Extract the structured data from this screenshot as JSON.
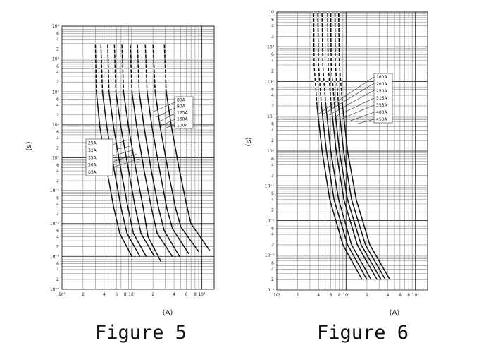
{
  "chart_data": [
    {
      "type": "line",
      "title": "",
      "caption": "Figure 5",
      "xlabel": "(A)",
      "ylabel": "(s)",
      "x_scale": "log",
      "y_scale": "log",
      "xlim": [
        10,
        1500
      ],
      "ylim": [
        0.0001,
        10000
      ],
      "x_ticks": [
        "10¹",
        "2",
        "4",
        "6",
        "8",
        "10²",
        "2",
        "4",
        "6",
        "8",
        "10³"
      ],
      "y_ticks": [
        "10⁻⁴",
        "2",
        "4",
        "6",
        "10⁻³",
        "2",
        "4",
        "6",
        "10⁻²",
        "2",
        "4",
        "6",
        "10⁻¹",
        "2",
        "4",
        "6",
        "10⁰",
        "2",
        "4",
        "6",
        "10¹",
        "2",
        "4",
        "6",
        "10²",
        "2",
        "4",
        "6",
        "10³",
        "2",
        "4",
        "6",
        "10⁴"
      ],
      "grid": true,
      "legend_groups": [
        [
          "25A",
          "32A",
          "35A",
          "50A",
          "63A"
        ],
        [
          "80A",
          "90A",
          "125A",
          "160A",
          "100A"
        ]
      ],
      "series": [
        {
          "name": "25A",
          "points": [
            [
              30,
              3000
            ],
            [
              31,
              100
            ],
            [
              35,
              8
            ],
            [
              44,
              0.4
            ],
            [
              55,
              0.03
            ],
            [
              67,
              0.005
            ],
            [
              100,
              0.001
            ]
          ]
        },
        {
          "name": "32A",
          "points": [
            [
              36,
              3000
            ],
            [
              38,
              100
            ],
            [
              44,
              8
            ],
            [
              56,
              0.4
            ],
            [
              70,
              0.03
            ],
            [
              85,
              0.005
            ],
            [
              130,
              0.001
            ]
          ]
        },
        {
          "name": "35A",
          "points": [
            [
              45,
              3000
            ],
            [
              47,
              100
            ],
            [
              55,
              8
            ],
            [
              70,
              0.4
            ],
            [
              88,
              0.03
            ],
            [
              105,
              0.005
            ],
            [
              160,
              0.001
            ]
          ]
        },
        {
          "name": "50A",
          "points": [
            [
              56,
              3000
            ],
            [
              59,
              100
            ],
            [
              70,
              8
            ],
            [
              90,
              0.4
            ],
            [
              112,
              0.03
            ],
            [
              135,
              0.005
            ],
            [
              210,
              0.001
            ]
          ]
        },
        {
          "name": "63A",
          "points": [
            [
              72,
              3000
            ],
            [
              76,
              100
            ],
            [
              90,
              8
            ],
            [
              115,
              0.4
            ],
            [
              145,
              0.03
            ],
            [
              170,
              0.004
            ],
            [
              260,
              0.0007
            ]
          ]
        },
        {
          "name": "80A",
          "points": [
            [
              95,
              3000
            ],
            [
              100,
              100
            ],
            [
              118,
              8
            ],
            [
              150,
              0.4
            ],
            [
              190,
              0.03
            ],
            [
              230,
              0.005
            ],
            [
              380,
              0.001
            ]
          ]
        },
        {
          "name": "90A",
          "points": [
            [
              120,
              3000
            ],
            [
              127,
              100
            ],
            [
              150,
              8
            ],
            [
              190,
              0.4
            ],
            [
              240,
              0.03
            ],
            [
              290,
              0.006
            ],
            [
              480,
              0.001
            ]
          ]
        },
        {
          "name": "125A",
          "points": [
            [
              155,
              3000
            ],
            [
              165,
              100
            ],
            [
              195,
              8
            ],
            [
              250,
              0.4
            ],
            [
              315,
              0.03
            ],
            [
              380,
              0.007
            ],
            [
              650,
              0.0012
            ]
          ]
        },
        {
          "name": "160A",
          "points": [
            [
              200,
              3000
            ],
            [
              215,
              100
            ],
            [
              255,
              8
            ],
            [
              330,
              0.4
            ],
            [
              420,
              0.03
            ],
            [
              500,
              0.008
            ],
            [
              900,
              0.0014
            ]
          ]
        },
        {
          "name": "100A",
          "points": [
            [
              290,
              3000
            ],
            [
              310,
              100
            ],
            [
              370,
              8
            ],
            [
              480,
              0.4
            ],
            [
              600,
              0.04
            ],
            [
              700,
              0.01
            ],
            [
              1300,
              0.0015
            ]
          ]
        }
      ]
    },
    {
      "type": "line",
      "title": "",
      "caption": "Figure 6",
      "xlabel": "(A)",
      "ylabel": "(s)",
      "x_scale": "log",
      "y_scale": "log",
      "xlim": [
        100,
        15000
      ],
      "ylim": [
        0.0001,
        10000
      ],
      "x_ticks": [
        "10²",
        "2",
        "4",
        "6",
        "8",
        "10³",
        "2",
        "4",
        "6",
        "8",
        "10⁴"
      ],
      "y_ticks": [
        "10⁻⁴",
        "2",
        "4",
        "6",
        "10⁻³",
        "2",
        "4",
        "6",
        "10⁻²",
        "2",
        "4",
        "6",
        "10⁻¹",
        "2",
        "4",
        "6",
        "10⁰",
        "2",
        "4",
        "6",
        "10¹",
        "2",
        "4",
        "6",
        "10²",
        "2",
        "4",
        "6",
        "10³",
        "2",
        "4",
        "6",
        "10"
      ],
      "grid": true,
      "legend_groups": [
        [
          "160A",
          "200A",
          "250A",
          "315A",
          "355A",
          "400A",
          "450A"
        ]
      ],
      "series": [
        {
          "name": "160A",
          "points": [
            [
              340,
              10000
            ],
            [
              345,
              300
            ],
            [
              380,
              20
            ],
            [
              450,
              1
            ],
            [
              580,
              0.04
            ],
            [
              900,
              0.002
            ],
            [
              1700,
              0.0002
            ]
          ]
        },
        {
          "name": "200A",
          "points": [
            [
              390,
              10000
            ],
            [
              400,
              300
            ],
            [
              440,
              20
            ],
            [
              520,
              1
            ],
            [
              670,
              0.04
            ],
            [
              1050,
              0.002
            ],
            [
              2000,
              0.0002
            ]
          ]
        },
        {
          "name": "250A",
          "points": [
            [
              450,
              10000
            ],
            [
              460,
              300
            ],
            [
              510,
              20
            ],
            [
              600,
              1
            ],
            [
              780,
              0.04
            ],
            [
              1200,
              0.002
            ],
            [
              2300,
              0.0002
            ]
          ]
        },
        {
          "name": "315A",
          "points": [
            [
              540,
              10000
            ],
            [
              550,
              300
            ],
            [
              610,
              20
            ],
            [
              720,
              1
            ],
            [
              930,
              0.04
            ],
            [
              1450,
              0.002
            ],
            [
              2800,
              0.0002
            ]
          ]
        },
        {
          "name": "355A",
          "points": [
            [
              600,
              10000
            ],
            [
              610,
              300
            ],
            [
              680,
              20
            ],
            [
              800,
              1
            ],
            [
              1050,
              0.04
            ],
            [
              1650,
              0.002
            ],
            [
              3200,
              0.0002
            ]
          ]
        },
        {
          "name": "400A",
          "points": [
            [
              690,
              10000
            ],
            [
              700,
              300
            ],
            [
              780,
              20
            ],
            [
              920,
              1
            ],
            [
              1200,
              0.04
            ],
            [
              1900,
              0.002
            ],
            [
              3700,
              0.0002
            ]
          ]
        },
        {
          "name": "450A",
          "points": [
            [
              780,
              10000
            ],
            [
              800,
              300
            ],
            [
              890,
              20
            ],
            [
              1050,
              1
            ],
            [
              1400,
              0.04
            ],
            [
              2200,
              0.002
            ],
            [
              4300,
              0.0002
            ]
          ]
        }
      ]
    }
  ]
}
